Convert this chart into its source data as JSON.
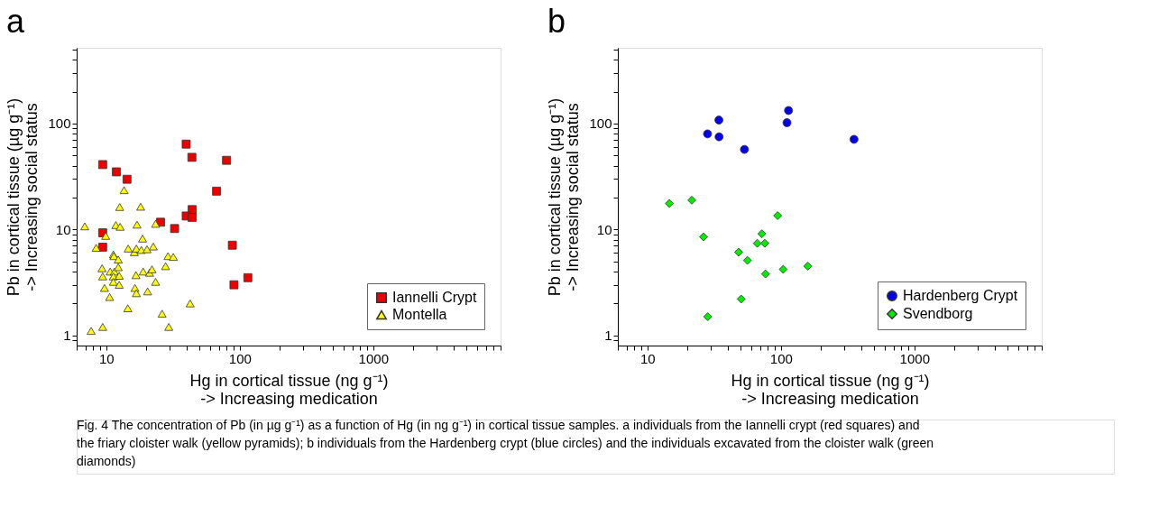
{
  "chart_data": [
    {
      "type": "scatter",
      "title": "a",
      "xlabel": "Hg in cortical tissue (ng g⁻¹)\n-> Increasing medication",
      "ylabel": "Pb in cortical tissue (µg g⁻¹)\n-> Increasing social status",
      "log": "xy",
      "grid": false,
      "legend": "bottom right",
      "xlim": [
        6,
        9000
      ],
      "ylim": [
        0.8,
        520
      ],
      "xticks": [
        {
          "value": 6,
          "label": null
        },
        {
          "value": 7,
          "label": null
        },
        {
          "value": 8,
          "label": null
        },
        {
          "value": 9,
          "label": null
        },
        10,
        {
          "value": 20,
          "label": null
        },
        {
          "value": 30,
          "label": null
        },
        {
          "value": 40,
          "label": null
        },
        {
          "value": 50,
          "label": null
        },
        {
          "value": 60,
          "label": null
        },
        {
          "value": 70,
          "label": null
        },
        {
          "value": 80,
          "label": null
        },
        {
          "value": 90,
          "label": null
        },
        100,
        {
          "value": 200,
          "label": null
        },
        {
          "value": 300,
          "label": null
        },
        {
          "value": 400,
          "label": null
        },
        {
          "value": 500,
          "label": null
        },
        {
          "value": 600,
          "label": null
        },
        {
          "value": 700,
          "label": null
        },
        {
          "value": 800,
          "label": null
        },
        {
          "value": 900,
          "label": null
        },
        1000,
        {
          "value": 2000,
          "label": null
        },
        {
          "value": 3000,
          "label": null
        },
        {
          "value": 4000,
          "label": null
        },
        {
          "value": 5000,
          "label": null
        },
        {
          "value": 6000,
          "label": null
        },
        {
          "value": 7000,
          "label": null
        },
        {
          "value": 8000,
          "label": null
        },
        {
          "value": 9000,
          "label": null
        }
      ],
      "yticks": [
        {
          "value": 0.9,
          "label": null
        },
        1,
        {
          "value": 2,
          "label": null
        },
        {
          "value": 3,
          "label": null
        },
        {
          "value": 4,
          "label": null
        },
        {
          "value": 5,
          "label": null
        },
        {
          "value": 6,
          "label": null
        },
        {
          "value": 7,
          "label": null
        },
        {
          "value": 8,
          "label": null
        },
        {
          "value": 9,
          "label": null
        },
        10,
        {
          "value": 20,
          "label": null
        },
        {
          "value": 30,
          "label": null
        },
        {
          "value": 40,
          "label": null
        },
        {
          "value": 50,
          "label": null
        },
        {
          "value": 60,
          "label": null
        },
        {
          "value": 70,
          "label": null
        },
        {
          "value": 80,
          "label": null
        },
        {
          "value": 90,
          "label": null
        },
        100,
        {
          "value": 200,
          "label": null
        },
        {
          "value": 300,
          "label": null
        },
        {
          "value": 400,
          "label": null
        },
        {
          "value": 500,
          "label": null
        }
      ],
      "series": [
        {
          "name": "Iannelli Crypt",
          "color": "#ee0000",
          "marker": "square",
          "x": [
            9.4,
            11.9,
            14.3,
            39.7,
            43.8,
            79.6,
            67,
            44,
            39.7,
            44,
            25.5,
            32.5,
            9.4,
            9.4,
            88,
            115,
            90.5
          ],
          "values": [
            41,
            35,
            29.8,
            64,
            48,
            45,
            23,
            15.4,
            13.4,
            13,
            11.7,
            10.2,
            9.3,
            6.8,
            7.1,
            3.5,
            3.0
          ]
        },
        {
          "name": "Montella",
          "color": "#ffff00",
          "marker": "triangle",
          "x": [
            6.9,
            11.8,
            12.7,
            17.0,
            23.4,
            13.6,
            12.6,
            18.1,
            9.9,
            18.7,
            8.4,
            14.6,
            16.2,
            16.8,
            18.3,
            20.2,
            22.5,
            11.3,
            11.4,
            12.3,
            29.0,
            31.8,
            27.8,
            9.3,
            10.7,
            11.5,
            12.3,
            9.4,
            11.3,
            12.5,
            11.3,
            16.7,
            18.9,
            21.1,
            22.0,
            23.4,
            9.7,
            12.5,
            10.6,
            16.4,
            16.8,
            20.4,
            14.5,
            42.5,
            26.2,
            29.4,
            7.7,
            9.4
          ],
          "values": [
            10.7,
            11.0,
            10.6,
            11.1,
            11.3,
            23.5,
            16.3,
            16.4,
            8.7,
            8.2,
            6.7,
            6.6,
            6.1,
            6.6,
            6.4,
            6.5,
            6.9,
            5.8,
            5.6,
            5.2,
            5.6,
            5.5,
            4.5,
            4.3,
            4.0,
            4.0,
            4.4,
            3.6,
            3.6,
            3.65,
            3.2,
            3.7,
            4.0,
            3.9,
            4.2,
            3.2,
            2.8,
            3.0,
            2.3,
            2.8,
            2.5,
            2.6,
            1.8,
            2.0,
            1.6,
            1.2,
            1.1,
            1.2
          ]
        }
      ],
      "annotations": [
        "Fig. 4 The concentration of Pb (in µg g⁻¹) as a function of Hg (in ng g⁻¹) in cortical tissue samples. a individuals from the Iannelli crypt (red squares) and the friary cloister walk (yellow pyramids); b individuals from the Hardenberg crypt (blue circles) and the individuals excavated from the cloister walk (green diamonds)"
      ]
    },
    {
      "type": "scatter",
      "title": "b",
      "xlabel": "Hg in cortical tissue (ng g⁻¹)\n-> Increasing medication",
      "ylabel": "Pb in cortical tissue (µg g⁻¹)\n-> Increasing social status",
      "log": "xy",
      "grid": false,
      "legend": "bottom right",
      "xlim": [
        6,
        9000
      ],
      "ylim": [
        0.8,
        520
      ],
      "xticks": [
        {
          "value": 6,
          "label": null
        },
        {
          "value": 7,
          "label": null
        },
        {
          "value": 8,
          "label": null
        },
        {
          "value": 9,
          "label": null
        },
        10,
        {
          "value": 20,
          "label": null
        },
        {
          "value": 30,
          "label": null
        },
        {
          "value": 40,
          "label": null
        },
        {
          "value": 50,
          "label": null
        },
        {
          "value": 60,
          "label": null
        },
        {
          "value": 70,
          "label": null
        },
        {
          "value": 80,
          "label": null
        },
        {
          "value": 90,
          "label": null
        },
        100,
        {
          "value": 200,
          "label": null
        },
        {
          "value": 300,
          "label": null
        },
        {
          "value": 400,
          "label": null
        },
        {
          "value": 500,
          "label": null
        },
        {
          "value": 600,
          "label": null
        },
        {
          "value": 700,
          "label": null
        },
        {
          "value": 800,
          "label": null
        },
        {
          "value": 900,
          "label": null
        },
        1000,
        {
          "value": 2000,
          "label": null
        },
        {
          "value": 3000,
          "label": null
        },
        {
          "value": 4000,
          "label": null
        },
        {
          "value": 5000,
          "label": null
        },
        {
          "value": 6000,
          "label": null
        },
        {
          "value": 7000,
          "label": null
        },
        {
          "value": 8000,
          "label": null
        },
        {
          "value": 9000,
          "label": null
        }
      ],
      "yticks": [
        {
          "value": 0.9,
          "label": null
        },
        1,
        {
          "value": 2,
          "label": null
        },
        {
          "value": 3,
          "label": null
        },
        {
          "value": 4,
          "label": null
        },
        {
          "value": 5,
          "label": null
        },
        {
          "value": 6,
          "label": null
        },
        {
          "value": 7,
          "label": null
        },
        {
          "value": 8,
          "label": null
        },
        {
          "value": 9,
          "label": null
        },
        10,
        {
          "value": 20,
          "label": null
        },
        {
          "value": 30,
          "label": null
        },
        {
          "value": 40,
          "label": null
        },
        {
          "value": 50,
          "label": null
        },
        {
          "value": 60,
          "label": null
        },
        {
          "value": 70,
          "label": null
        },
        {
          "value": 80,
          "label": null
        },
        {
          "value": 90,
          "label": null
        },
        100,
        {
          "value": 200,
          "label": null
        },
        {
          "value": 300,
          "label": null
        },
        {
          "value": 400,
          "label": null
        },
        {
          "value": 500,
          "label": null
        }
      ],
      "series": [
        {
          "name": "Hardenberg Crypt",
          "color": "#0000ee",
          "marker": "circle",
          "x": [
            28.2,
            34.3,
            34.4,
            53.3,
            114,
            111,
            353
          ],
          "values": [
            80,
            108,
            75,
            57,
            133,
            102,
            71
          ]
        },
        {
          "name": "Svendborg",
          "color": "#00ee00",
          "marker": "diamond",
          "x": [
            14.6,
            21.5,
            94.5,
            26.3,
            72,
            66.5,
            75.7,
            48.2,
            56.1,
            159,
            104,
            76.6,
            50.4,
            28.3
          ],
          "values": [
            17.6,
            18.9,
            13.5,
            8.5,
            9.1,
            7.4,
            7.4,
            6.1,
            5.1,
            4.5,
            4.2,
            3.8,
            2.2,
            1.5
          ]
        }
      ]
    }
  ]
}
